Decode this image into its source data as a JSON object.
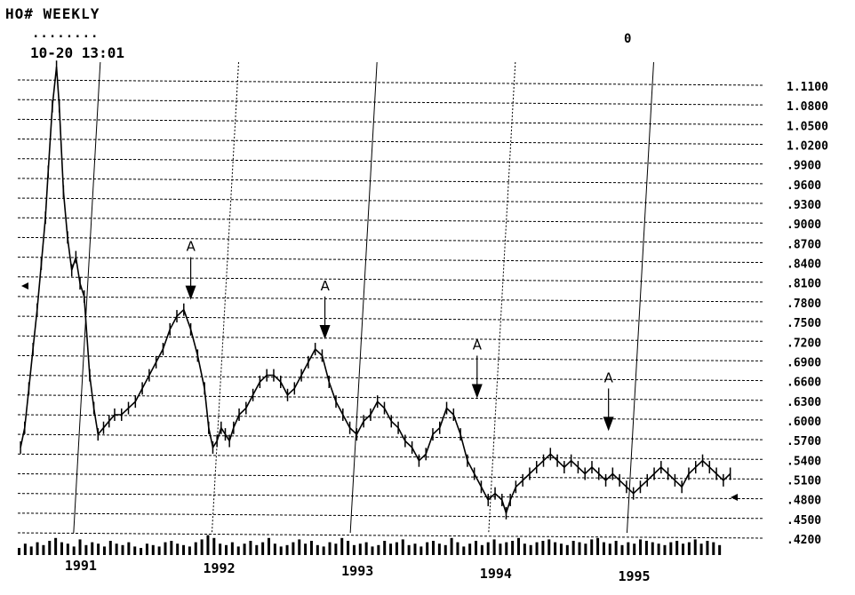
{
  "header": {
    "title": "HO# WEEKLY",
    "dots": "........",
    "timestamp": "10-20 13:01",
    "counter": "0"
  },
  "chart_data": {
    "type": "line",
    "title": "HO# WEEKLY",
    "ylim": [
      0.42,
      1.11
    ],
    "grid": "dashed horizontal and vertical",
    "y_tick_labels": [
      "1.1100",
      "1.0800",
      "1.0500",
      "1.0200",
      ".9900",
      ".9600",
      ".9300",
      ".9000",
      ".8700",
      ".8400",
      ".8100",
      ".7800",
      ".7500",
      ".7200",
      ".6900",
      ".6600",
      ".6300",
      ".6000",
      ".5700",
      ".5400",
      ".5100",
      ".4800",
      ".4500",
      ".4200"
    ],
    "y_tick_values": [
      1.11,
      1.08,
      1.05,
      1.02,
      0.99,
      0.96,
      0.93,
      0.9,
      0.87,
      0.84,
      0.81,
      0.78,
      0.75,
      0.72,
      0.69,
      0.66,
      0.63,
      0.6,
      0.57,
      0.54,
      0.51,
      0.48,
      0.45,
      0.42
    ],
    "x_tick_labels": [
      "1991",
      "1992",
      "1993",
      "1994",
      "1995"
    ],
    "x_tick_positions": [
      1991.0,
      1992.0,
      1993.0,
      1994.0,
      1995.0
    ],
    "xlim": [
      1990.5,
      1995.8
    ],
    "series": [
      {
        "x": [
          1990.52,
          1990.55,
          1990.58,
          1990.61,
          1990.64,
          1990.67,
          1990.7,
          1990.72,
          1990.75,
          1990.78,
          1990.8,
          1990.83,
          1990.86,
          1990.89,
          1990.92,
          1990.95,
          1990.98,
          1991.02,
          1991.05,
          1991.08,
          1991.12,
          1991.16,
          1991.2,
          1991.25,
          1991.3,
          1991.35,
          1991.4,
          1991.45,
          1991.5,
          1991.55,
          1991.6,
          1991.65,
          1991.7,
          1991.75,
          1991.8,
          1991.85,
          1991.88,
          1991.91,
          1991.94,
          1991.97,
          1992.0,
          1992.03,
          1992.06,
          1992.1,
          1992.15,
          1992.2,
          1992.25,
          1992.3,
          1992.35,
          1992.4,
          1992.45,
          1992.5,
          1992.55,
          1992.6,
          1992.65,
          1992.7,
          1992.75,
          1992.8,
          1992.85,
          1992.9,
          1992.95,
          1993.0,
          1993.05,
          1993.1,
          1993.15,
          1993.2,
          1993.25,
          1993.3,
          1993.35,
          1993.4,
          1993.45,
          1993.5,
          1993.55,
          1993.6,
          1993.65,
          1993.7,
          1993.75,
          1993.8,
          1993.85,
          1993.9,
          1993.95,
          1994.0,
          1994.03,
          1994.06,
          1994.1,
          1994.15,
          1994.2,
          1994.25,
          1994.3,
          1994.35,
          1994.4,
          1994.45,
          1994.5,
          1994.55,
          1994.6,
          1994.65,
          1994.7,
          1994.75,
          1994.8,
          1994.85,
          1994.9,
          1994.95,
          1995.0,
          1995.05,
          1995.1,
          1995.15,
          1995.2,
          1995.25,
          1995.3,
          1995.35,
          1995.4,
          1995.45,
          1995.5,
          1995.55,
          1995.6,
          1995.65
        ],
        "values": [
          0.55,
          0.58,
          0.64,
          0.7,
          0.76,
          0.83,
          0.9,
          0.97,
          1.07,
          1.13,
          1.07,
          0.94,
          0.87,
          0.82,
          0.84,
          0.8,
          0.78,
          0.66,
          0.61,
          0.57,
          0.58,
          0.59,
          0.6,
          0.6,
          0.61,
          0.62,
          0.64,
          0.66,
          0.68,
          0.7,
          0.73,
          0.75,
          0.76,
          0.73,
          0.69,
          0.64,
          0.58,
          0.55,
          0.56,
          0.58,
          0.57,
          0.56,
          0.58,
          0.6,
          0.61,
          0.63,
          0.65,
          0.66,
          0.66,
          0.65,
          0.63,
          0.64,
          0.66,
          0.68,
          0.7,
          0.69,
          0.65,
          0.62,
          0.6,
          0.58,
          0.57,
          0.59,
          0.6,
          0.62,
          0.61,
          0.59,
          0.58,
          0.56,
          0.55,
          0.53,
          0.54,
          0.57,
          0.58,
          0.61,
          0.6,
          0.57,
          0.53,
          0.51,
          0.49,
          0.47,
          0.48,
          0.47,
          0.45,
          0.47,
          0.49,
          0.5,
          0.51,
          0.52,
          0.53,
          0.54,
          0.53,
          0.52,
          0.53,
          0.52,
          0.51,
          0.52,
          0.51,
          0.5,
          0.51,
          0.5,
          0.49,
          0.48,
          0.49,
          0.5,
          0.51,
          0.52,
          0.51,
          0.5,
          0.49,
          0.51,
          0.52,
          0.53,
          0.52,
          0.51,
          0.5,
          0.51
        ]
      }
    ],
    "volume": [
      5,
      8,
      6,
      9,
      7,
      10,
      12,
      9,
      8,
      6,
      11,
      7,
      9,
      8,
      6,
      10,
      8,
      7,
      9,
      6,
      5,
      8,
      7,
      6,
      9,
      10,
      8,
      7,
      6,
      9,
      11,
      14,
      12,
      8,
      7,
      9,
      6,
      8,
      10,
      7,
      9,
      12,
      8,
      6,
      7,
      9,
      11,
      8,
      10,
      7,
      6,
      9,
      8,
      12,
      10,
      7,
      8,
      9,
      6,
      7,
      10,
      8,
      9,
      11,
      7,
      8,
      6,
      9,
      10,
      8,
      7,
      12,
      9,
      6,
      8,
      10,
      7,
      9,
      11,
      8,
      9,
      10,
      12,
      8,
      7,
      9,
      10,
      11,
      9,
      8,
      7,
      10,
      9,
      8,
      11,
      12,
      9,
      8,
      10,
      7,
      9,
      8,
      11,
      10,
      9,
      8,
      7,
      9,
      10,
      8,
      9,
      11,
      8,
      10,
      9,
      7
    ],
    "annotations": [
      {
        "label": "A",
        "x": 1991.75,
        "y": 0.775
      },
      {
        "label": "A",
        "x": 1992.72,
        "y": 0.715
      },
      {
        "label": "A",
        "x": 1993.82,
        "y": 0.625
      },
      {
        "label": "A",
        "x": 1994.77,
        "y": 0.575
      }
    ]
  }
}
